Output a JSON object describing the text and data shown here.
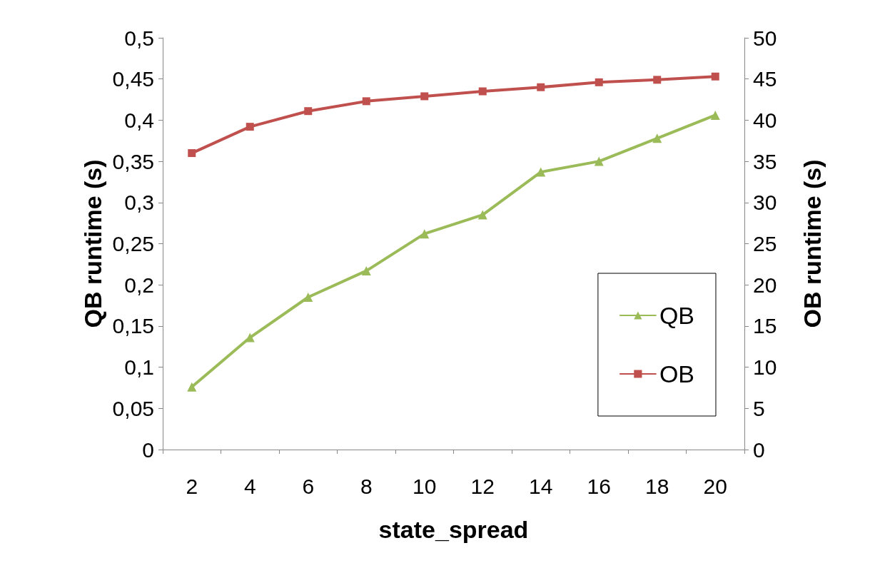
{
  "chart_data": {
    "type": "line",
    "xlabel": "state_spread",
    "ylabel": "QB runtime (s)",
    "y2label": "OB runtime (s)",
    "categories": [
      "2",
      "4",
      "6",
      "8",
      "10",
      "12",
      "14",
      "16",
      "18",
      "20"
    ],
    "series": [
      {
        "name": "QB",
        "color": "#9bbb59",
        "marker": "triangle",
        "values": [
          0.076,
          0.136,
          0.185,
          0.217,
          0.262,
          0.285,
          0.337,
          0.35,
          0.378,
          0.406
        ]
      },
      {
        "name": "OB",
        "color": "#c0504d",
        "marker": "square",
        "axis": "y2",
        "values": [
          36,
          39.2,
          41.1,
          42.3,
          42.9,
          43.5,
          44,
          44.6,
          44.9,
          45.3
        ]
      }
    ],
    "ylim": [
      0,
      0.5
    ],
    "yticks": [
      0,
      {
        "value": 0.05,
        "label": "0,05"
      },
      {
        "value": 0.1,
        "label": "0,1"
      },
      {
        "value": 0.15,
        "label": "0,15"
      },
      {
        "value": 0.2,
        "label": "0,2"
      },
      {
        "value": 0.25,
        "label": "0,25"
      },
      {
        "value": 0.3,
        "label": "0,3"
      },
      {
        "value": 0.35,
        "label": "0,35"
      },
      {
        "value": 0.4,
        "label": "0,4"
      },
      {
        "value": 0.45,
        "label": "0,45"
      },
      {
        "value": 0.5,
        "label": "0,5"
      }
    ],
    "y2lim": [
      0,
      50
    ],
    "y2ticks": [
      0,
      5,
      10,
      15,
      20,
      25,
      30,
      35,
      40,
      45,
      50
    ],
    "grid": false,
    "legend": "right",
    "line_style": "solid"
  }
}
